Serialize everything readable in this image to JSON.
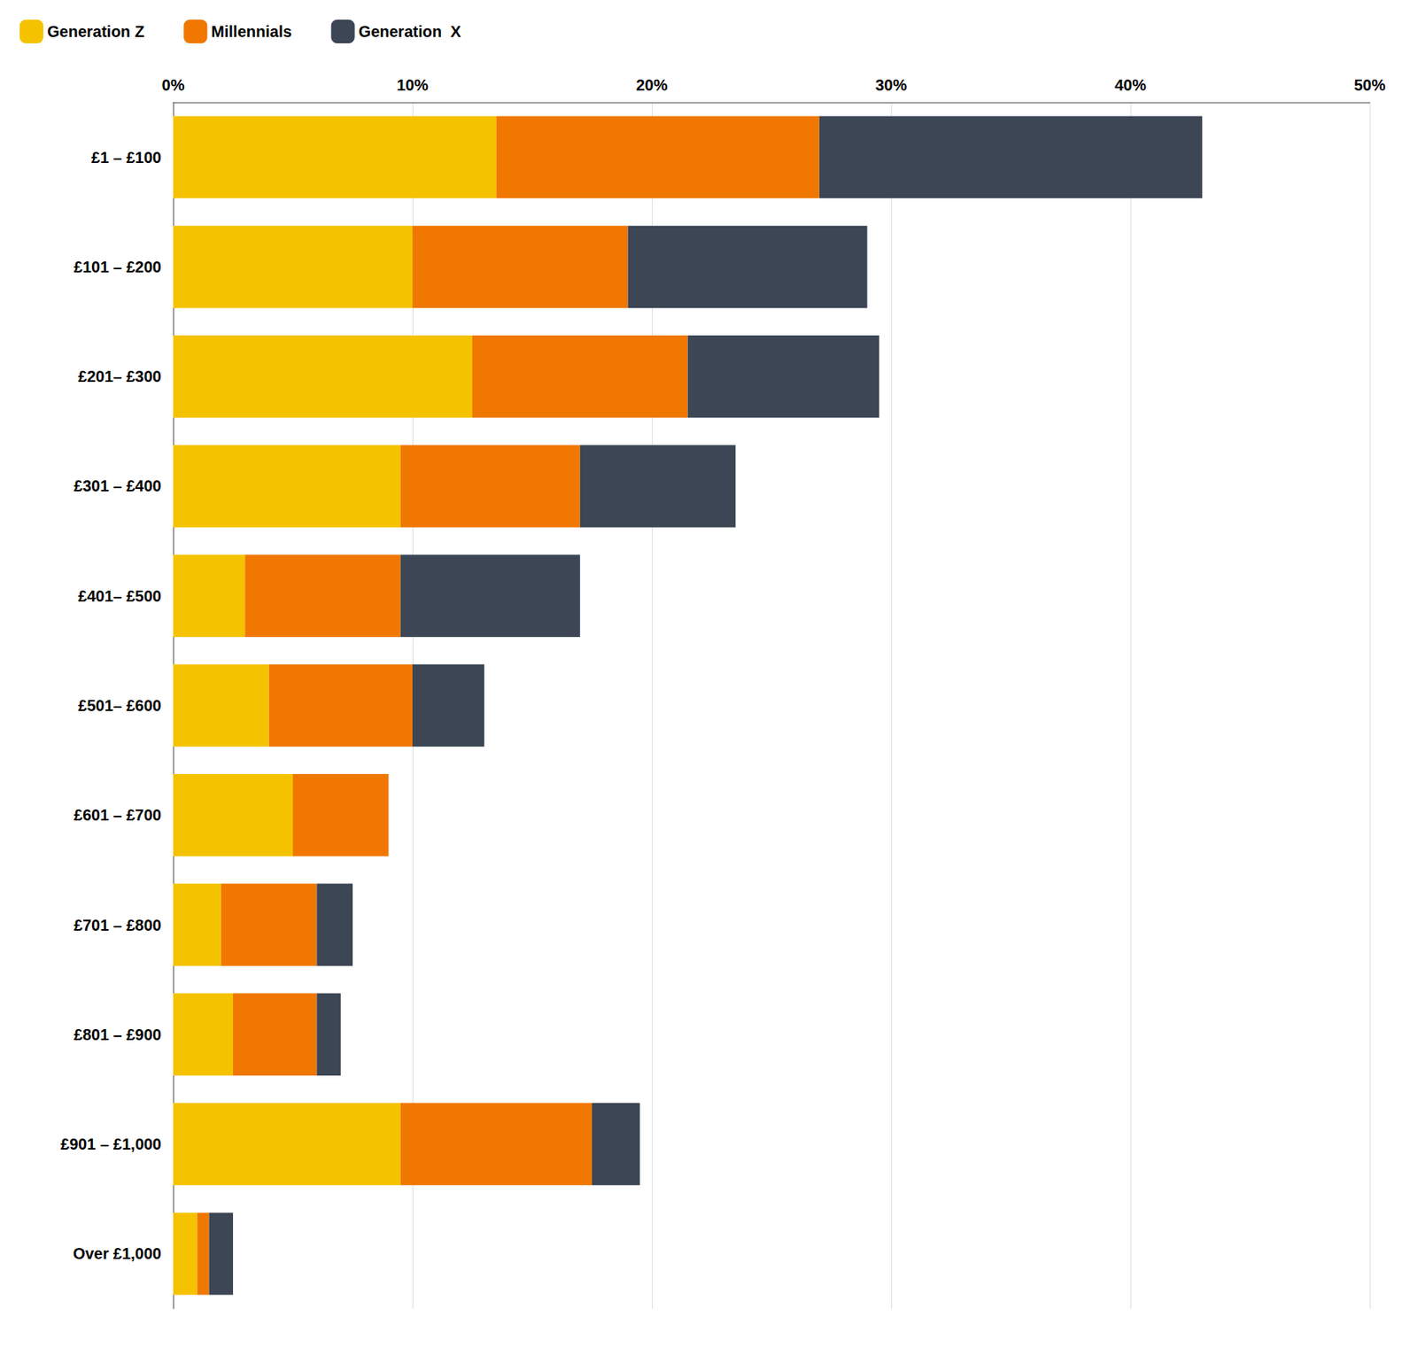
{
  "chart_data": {
    "type": "bar",
    "orientation": "horizontal",
    "stacked": true,
    "categories": [
      "£1 – £100",
      "£101 – £200",
      "£201– £300",
      "£301 – £400",
      "£401– £500",
      "£501– £600",
      "£601 – £700",
      "£701 – £800",
      "£801 – £900",
      "£901 – £1,000",
      "Over £1,000"
    ],
    "series": [
      {
        "name": "Generation Z",
        "color": "#F5C200",
        "values": [
          13.5,
          10.0,
          12.5,
          9.5,
          3.0,
          4.0,
          5.0,
          2.0,
          2.5,
          9.5,
          1.0
        ]
      },
      {
        "name": "Millennials",
        "color": "#F07800",
        "values": [
          13.5,
          9.0,
          9.0,
          7.5,
          6.5,
          6.0,
          4.0,
          4.0,
          3.5,
          8.0,
          0.5
        ]
      },
      {
        "name": "Generation  X",
        "color": "#3C4655",
        "values": [
          16.0,
          10.0,
          8.0,
          6.5,
          7.5,
          3.0,
          0.0,
          1.5,
          1.0,
          2.0,
          1.0
        ]
      }
    ],
    "xlim": [
      0,
      50
    ],
    "xticks": [
      {
        "value": 0,
        "label": "0%"
      },
      {
        "value": 10,
        "label": "10%"
      },
      {
        "value": 20,
        "label": "20%"
      },
      {
        "value": 30,
        "label": "30%"
      },
      {
        "value": 40,
        "label": "40%"
      },
      {
        "value": 50,
        "label": "50%"
      }
    ],
    "grid": true,
    "legend": "upper left"
  }
}
